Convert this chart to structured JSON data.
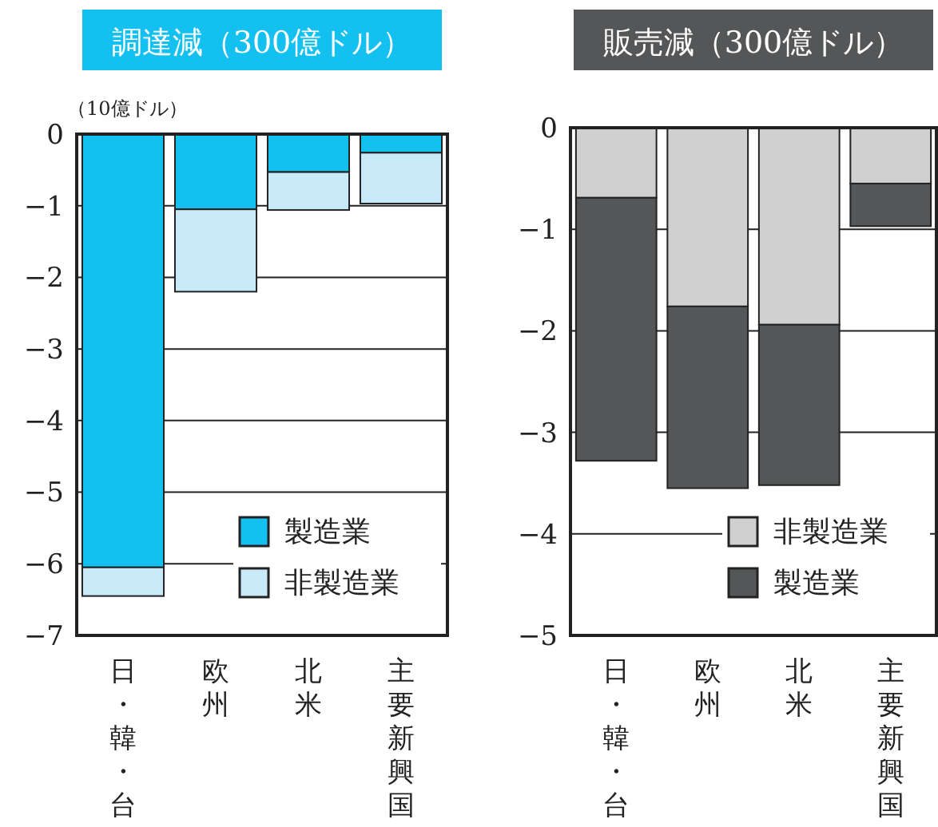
{
  "chart_data": [
    {
      "type": "bar",
      "title": "調達減（300億ドル）",
      "ylabel": "（10億ドル）",
      "categories": [
        "日・韓・台",
        "欧州",
        "北米",
        "主要新興国"
      ],
      "stacked": true,
      "ylim": [
        -7,
        0
      ],
      "yticks": [
        0,
        -1,
        -2,
        -3,
        -4,
        -5,
        -6,
        -7
      ],
      "grid": "y",
      "legend": "bottom right",
      "series": [
        {
          "name": "製造業",
          "color": "#14c0f0",
          "values": [
            -6.05,
            -1.05,
            -0.53,
            -0.26
          ]
        },
        {
          "name": "非製造業",
          "color": "#c8e9f8",
          "values": [
            -0.4,
            -1.15,
            -0.53,
            -0.71
          ]
        }
      ]
    },
    {
      "type": "bar",
      "title": "販売減（300億ドル）",
      "categories": [
        "日・韓・台",
        "欧州",
        "北米",
        "主要新興国"
      ],
      "stacked": true,
      "ylim": [
        -5,
        0
      ],
      "yticks": [
        0,
        -1,
        -2,
        -3,
        -4,
        -5
      ],
      "grid": "y",
      "legend": "bottom right",
      "series": [
        {
          "name": "非製造業",
          "color": "#d0d0d0",
          "values": [
            -0.69,
            -1.76,
            -1.94,
            -0.55
          ]
        },
        {
          "name": "製造業",
          "color": "#555657",
          "values": [
            -2.59,
            -1.79,
            -1.58,
            -0.42
          ]
        }
      ]
    }
  ]
}
